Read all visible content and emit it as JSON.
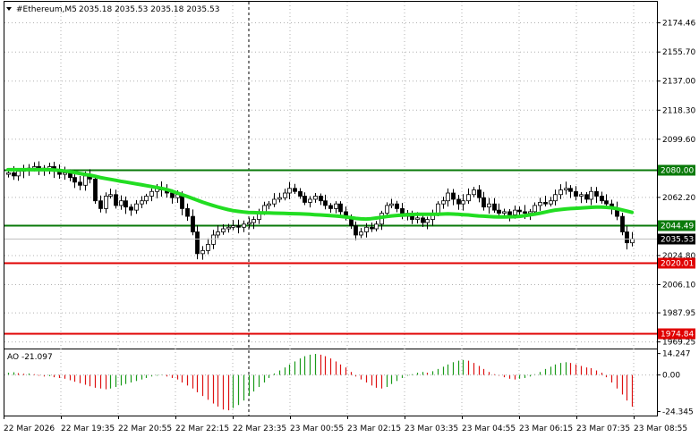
{
  "header": {
    "symbol": "#Ethereum,M5",
    "ohlc": "2035.18 2035.53 2035.18 2035.53"
  },
  "indicator": {
    "label": "AO -21.097"
  },
  "colors": {
    "ma": "#22dd22",
    "support": "#0a7a0a",
    "resistance": "#e00000",
    "ao_up": "#1a9a1a",
    "ao_down": "#dd1111",
    "candle": "#000000",
    "price_tag": "#000000"
  },
  "chart_data": [
    {
      "type": "candlestick",
      "title": "#Ethereum,M5",
      "ylim": [
        1965,
        2188
      ],
      "y_ticks": [
        "2174.46",
        "2155.70",
        "2137.00",
        "2118.30",
        "2099.60",
        "2062.20",
        "2024.80",
        "2006.10",
        "1987.95",
        "1969.25"
      ],
      "x_ticks": [
        "22 Mar 2026",
        "22 Mar 19:35",
        "22 Mar 20:55",
        "22 Mar 22:15",
        "22 Mar 23:35",
        "23 Mar 00:55",
        "23 Mar 02:15",
        "23 Mar 03:35",
        "23 Mar 04:55",
        "23 Mar 06:15",
        "23 Mar 07:35",
        "23 Mar 08:55"
      ],
      "levels": [
        {
          "value": 2080.0,
          "label": "2080.00",
          "kind": "support"
        },
        {
          "value": 2044.49,
          "label": "2044.49",
          "kind": "support"
        },
        {
          "value": 2020.01,
          "label": "2020.01",
          "kind": "resistance"
        },
        {
          "value": 1974.84,
          "label": "1974.84",
          "kind": "resistance"
        }
      ],
      "current_price": {
        "value": 2035.53,
        "label": "2035.53"
      },
      "closes": [
        2078,
        2076,
        2079,
        2080,
        2081,
        2082,
        2081,
        2080,
        2082,
        2079,
        2077,
        2078,
        2075,
        2072,
        2070,
        2076,
        2074,
        2060,
        2055,
        2063,
        2064,
        2057,
        2060,
        2056,
        2054,
        2058,
        2060,
        2063,
        2066,
        2068,
        2067,
        2065,
        2062,
        2064,
        2055,
        2050,
        2040,
        2026,
        2028,
        2032,
        2038,
        2040,
        2042,
        2043,
        2044,
        2043,
        2045,
        2046,
        2048,
        2053,
        2057,
        2058,
        2061,
        2062,
        2065,
        2068,
        2066,
        2063,
        2059,
        2061,
        2063,
        2060,
        2057,
        2055,
        2058,
        2053,
        2049,
        2044,
        2038,
        2040,
        2043,
        2042,
        2045,
        2052,
        2057,
        2058,
        2055,
        2050,
        2052,
        2048,
        2049,
        2046,
        2048,
        2052,
        2058,
        2060,
        2065,
        2061,
        2058,
        2060,
        2064,
        2067,
        2062,
        2056,
        2058,
        2054,
        2052,
        2053,
        2051,
        2054,
        2053,
        2052,
        2053,
        2057,
        2059,
        2058,
        2060,
        2064,
        2067,
        2068,
        2066,
        2063,
        2064,
        2061,
        2066,
        2063,
        2060,
        2058,
        2055,
        2050,
        2040,
        2033,
        2035.53
      ],
      "ma_values": [
        2080,
        2080,
        2080,
        2080,
        2080,
        2080,
        2080,
        2080,
        2080,
        2079.8,
        2079.6,
        2079.2,
        2078.8,
        2078.2,
        2077.6,
        2077,
        2076.5,
        2075.8,
        2075,
        2074.4,
        2073.8,
        2073.2,
        2072.6,
        2072.1,
        2071.5,
        2070.9,
        2070.4,
        2069.8,
        2069.2,
        2068.6,
        2068,
        2067.3,
        2066.3,
        2065.2,
        2064,
        2062.8,
        2061.6,
        2060.4,
        2059.2,
        2058.1,
        2057.1,
        2056.1,
        2055.2,
        2054.4,
        2053.7,
        2053.2,
        2052.8,
        2052.5,
        2052.4,
        2052.3,
        2052.2,
        2052.2,
        2052.1,
        2052,
        2051.9,
        2051.8,
        2051.7,
        2051.6,
        2051.5,
        2051.3,
        2051.1,
        2050.9,
        2050.7,
        2050.5,
        2050.3,
        2050,
        2049.6,
        2049.2,
        2048.7,
        2048.4,
        2048.3,
        2048.5,
        2048.9,
        2049.4,
        2049.9,
        2050.3,
        2050.6,
        2050.8,
        2051,
        2051.2,
        2051.3,
        2051.3,
        2051.3,
        2051.3,
        2051.4,
        2051.5,
        2051.6,
        2051.5,
        2051.3,
        2051.1,
        2050.9,
        2050.6,
        2050.3,
        2050.1,
        2049.9,
        2049.7,
        2049.6,
        2049.6,
        2049.7,
        2049.8,
        2050,
        2050.4,
        2050.9,
        2051.4,
        2052,
        2052.7,
        2053.4,
        2054,
        2054.4,
        2054.7,
        2055,
        2055.2,
        2055.4,
        2055.6,
        2055.8,
        2056,
        2056,
        2055.8,
        2055.5,
        2055,
        2054.2,
        2053.4,
        2052.6
      ],
      "ao_values": [
        1.5,
        1.8,
        1.2,
        0.8,
        1.0,
        0.5,
        -0.5,
        -1.0,
        -0.8,
        -1.5,
        -2.0,
        -2.5,
        -3.5,
        -4.5,
        -5.5,
        -6.5,
        -7.5,
        -8.5,
        -9.0,
        -9.5,
        -9.0,
        -8.0,
        -7.0,
        -6.0,
        -5.0,
        -4.0,
        -3.0,
        -2.0,
        -1.0,
        -0.5,
        -0.2,
        -1.0,
        -2.0,
        -3.0,
        -5.0,
        -7.0,
        -9.0,
        -11.5,
        -14.0,
        -16.5,
        -19.0,
        -21.0,
        -23.0,
        -23.5,
        -22.0,
        -20.0,
        -17.0,
        -14.0,
        -11.0,
        -8.0,
        -5.0,
        -2.0,
        1.0,
        3.0,
        5.0,
        7.0,
        9.0,
        11.0,
        12.5,
        13.5,
        14.0,
        13.5,
        12.5,
        11.0,
        9.0,
        7.0,
        5.0,
        2.0,
        -1.0,
        -3.0,
        -5.0,
        -7.0,
        -8.5,
        -9.0,
        -8.0,
        -6.0,
        -4.0,
        -2.0,
        -0.5,
        0.5,
        1.5,
        2.0,
        1.5,
        2.5,
        4.0,
        5.5,
        7.0,
        8.5,
        9.5,
        10.0,
        9.5,
        8.0,
        6.0,
        4.0,
        2.0,
        0.5,
        -0.5,
        -1.5,
        -2.5,
        -3.0,
        -2.5,
        -2.0,
        -1.0,
        0.5,
        2.0,
        4.0,
        5.5,
        7.0,
        8.0,
        8.5,
        8.0,
        7.0,
        6.0,
        5.0,
        4.5,
        3.0,
        1.5,
        -1.5,
        -5.0,
        -9.0,
        -13.0,
        -17.0,
        -21.097
      ],
      "ao_ylim": [
        -27,
        17
      ],
      "ao_ticks": [
        "14.247",
        "0.00",
        "-24.345"
      ]
    }
  ]
}
